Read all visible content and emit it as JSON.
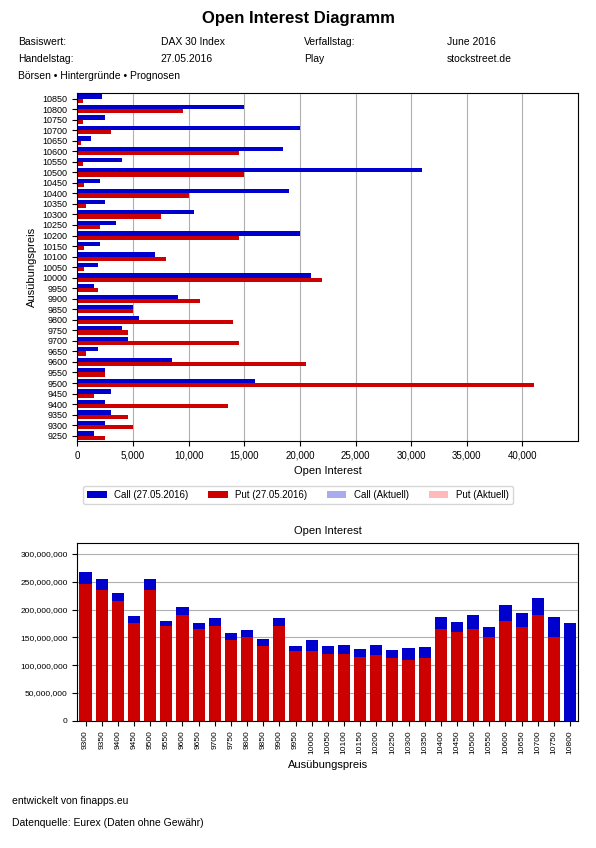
{
  "chart_data": [
    {
      "type": "bar",
      "title": "Open Interest Diagramm",
      "orientation": "horizontal",
      "ylabel": "Ausübungspreis",
      "xlabel": "Open Interest",
      "annotations": [
        "Basiswert:",
        "DAX 30 Index",
        "Verfallstag:",
        "June 2016",
        "Handelstag:",
        "27.05.2016",
        "Play",
        "stockstreet.de",
        "Börsen • Hintergründe • Prognosen"
      ],
      "categories": [
        "10850",
        "10800",
        "10750",
        "10700",
        "10650",
        "10600",
        "10550",
        "10500",
        "10450",
        "10400",
        "10350",
        "10300",
        "10250",
        "10200",
        "10150",
        "10100",
        "10050",
        "10000",
        "9950",
        "9900",
        "9850",
        "9800",
        "9750",
        "9700",
        "9650",
        "9600",
        "9550",
        "9500",
        "9450",
        "9400",
        "9350",
        "9300",
        "9250"
      ],
      "series": [
        {
          "name": "Call (27.05.2016)",
          "color": "#0000cc",
          "values": [
            2200,
            15000,
            2500,
            20000,
            1200,
            18500,
            4000,
            31000,
            2000,
            19000,
            2500,
            10500,
            3500,
            20000,
            2000,
            7000,
            1800,
            21000,
            1500,
            9000,
            5000,
            5500,
            4000,
            4500,
            1800,
            8500,
            2500,
            16000,
            3000,
            2500,
            3000,
            2500,
            1500
          ]
        },
        {
          "name": "Put (27.05.2016)",
          "color": "#cc0000",
          "values": [
            500,
            9500,
            500,
            3000,
            300,
            14500,
            500,
            15000,
            600,
            10000,
            800,
            7500,
            2000,
            14500,
            600,
            8000,
            600,
            22000,
            1800,
            11000,
            5000,
            14000,
            4500,
            14500,
            800,
            20500,
            2500,
            41000,
            1500,
            13500,
            4500,
            5000,
            2500
          ]
        },
        {
          "name": "Call (Aktuell)",
          "color": "#aaaaee",
          "values": [
            null,
            null,
            null,
            null,
            null,
            null,
            null,
            null,
            null,
            null,
            null,
            null,
            null,
            null,
            null,
            null,
            null,
            null,
            null,
            null,
            null,
            null,
            null,
            null,
            null,
            null,
            null,
            null,
            null,
            null,
            null,
            null,
            null
          ]
        },
        {
          "name": "Put (Aktuell)",
          "color": "#ffbbbb",
          "values": [
            null,
            null,
            null,
            null,
            null,
            null,
            null,
            null,
            null,
            null,
            null,
            null,
            null,
            null,
            null,
            null,
            null,
            null,
            null,
            null,
            null,
            null,
            null,
            null,
            null,
            null,
            null,
            null,
            null,
            null,
            null,
            null,
            null
          ]
        }
      ],
      "xlim": [
        0,
        45000
      ],
      "xticks": [
        0,
        {
          "value": 5000,
          "label": "5,000"
        },
        {
          "value": 10000,
          "label": "10,000"
        },
        {
          "value": 15000,
          "label": "15,000"
        },
        {
          "value": 20000,
          "label": "20,000"
        },
        {
          "value": 25000,
          "label": "25,000"
        },
        {
          "value": 30000,
          "label": "30,000"
        },
        {
          "value": 35000,
          "label": "35,000"
        },
        {
          "value": 40000,
          "label": "40,000"
        }
      ],
      "grid": true,
      "legend": "lower center"
    },
    {
      "type": "bar",
      "title": "Open Interest",
      "xlabel": "Ausübungspreis",
      "stacked": true,
      "annotations": [
        "entwickelt von finapps.eu",
        "Datenquelle: Eurex (Daten ohne Gewähr)"
      ],
      "categories": [
        "9300",
        "9350",
        "9400",
        "9450",
        "9500",
        "9550",
        "9600",
        "9650",
        "9700",
        "9750",
        "9800",
        "9850",
        "9900",
        "9950",
        "10000",
        "10050",
        "10100",
        "10150",
        "10200",
        "10250",
        "10300",
        "10350",
        "10400",
        "10450",
        "10500",
        "10550",
        "10600",
        "10650",
        "10700",
        "10750",
        "10800"
      ],
      "series": [
        {
          "name": "Put (27.05.2016)",
          "color": "#cc0000",
          "values": [
            245000000,
            235000000,
            215000000,
            175000000,
            235000000,
            170000000,
            190000000,
            165000000,
            170000000,
            145000000,
            150000000,
            135000000,
            170000000,
            125000000,
            125000000,
            120000000,
            120000000,
            115000000,
            118000000,
            112000000,
            110000000,
            112000000,
            165000000,
            160000000,
            165000000,
            150000000,
            180000000,
            168000000,
            190000000,
            150000000,
            0
          ]
        },
        {
          "name": "Call (27.05.2016)",
          "color": "#0000cc",
          "values": [
            22000000,
            20000000,
            15000000,
            14000000,
            20000000,
            10000000,
            14000000,
            10000000,
            14000000,
            12000000,
            14000000,
            12000000,
            14000000,
            10000000,
            20000000,
            14000000,
            16000000,
            14000000,
            18000000,
            16000000,
            20000000,
            20000000,
            22000000,
            18000000,
            26000000,
            18000000,
            28000000,
            25000000,
            30000000,
            36000000,
            175000000
          ]
        }
      ],
      "ylim": [
        0,
        320000000
      ],
      "yticks": [
        0,
        {
          "value": 50000000,
          "label": "50,000,000"
        },
        {
          "value": 100000000,
          "label": "100,000,000"
        },
        {
          "value": 150000000,
          "label": "150,000,000"
        },
        {
          "value": 200000000,
          "label": "200,000,000"
        },
        {
          "value": 250000000,
          "label": "250,000,000"
        },
        {
          "value": 300000000,
          "label": "300,000,000"
        }
      ],
      "grid": true
    }
  ]
}
